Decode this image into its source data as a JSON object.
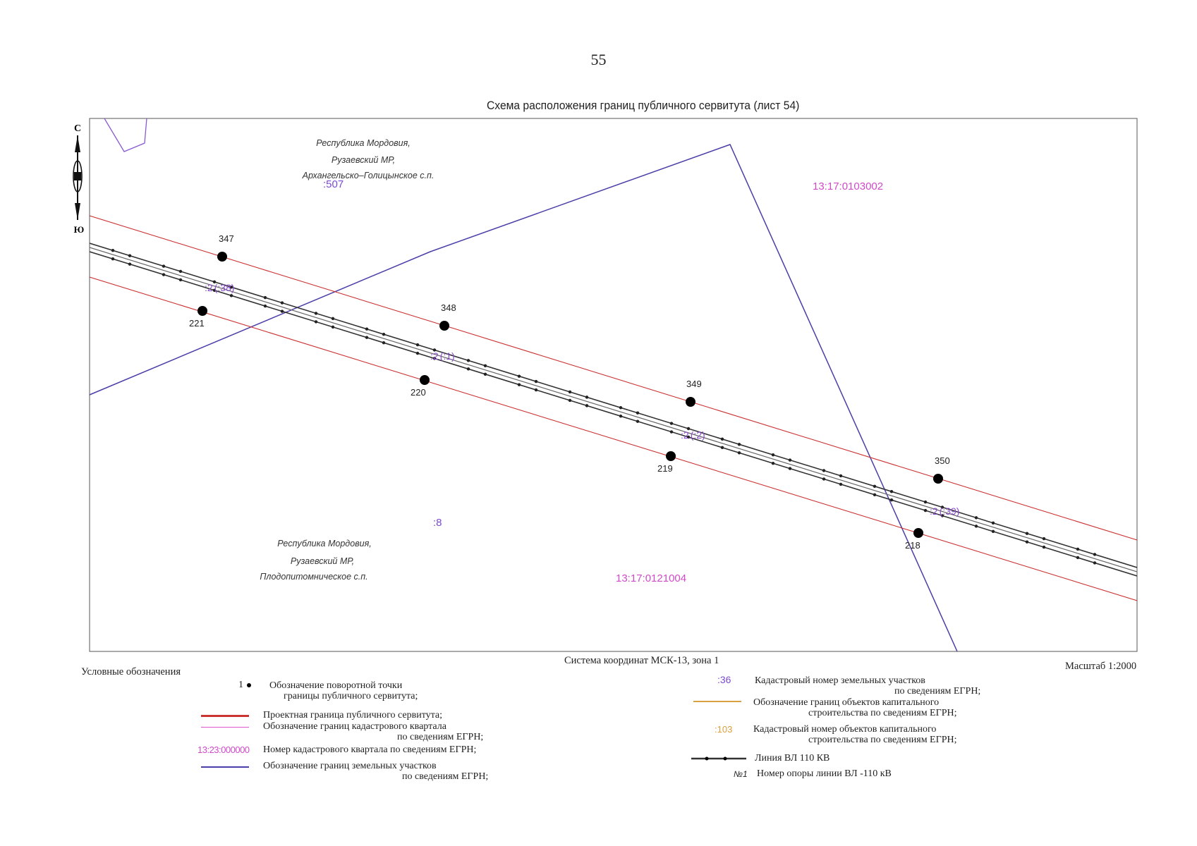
{
  "page_number": "55",
  "title": "Схема расположения границ публичного сервитута (лист 54)",
  "compass": {
    "north": "С",
    "south": "Ю"
  },
  "regions": {
    "north": [
      "Республика Мордовия,",
      "Рузаевский МР,",
      "Архангельско–Голицынское с.п."
    ],
    "south": [
      "Республика Мордовия,",
      "Рузаевский МР,",
      "Плодопитомническое с.п."
    ]
  },
  "parcel_labels": {
    "p507": ":507",
    "p8": ":8",
    "p2": ":2"
  },
  "quarter_labels": {
    "q1": "13:17:0103002",
    "q2": "13:17:0121004"
  },
  "object_labels": [
    "(:1)",
    "(:2)",
    "(:38)",
    "(:39)"
  ],
  "points": {
    "p347": "347",
    "p348": "348",
    "p349": "349",
    "p350": "350",
    "p221": "221",
    "p220": "220",
    "p219": "219",
    "p218": "218"
  },
  "coord_system": "Система координат МСК-13, зона 1",
  "scale": "Масштаб 1:2000",
  "legend": {
    "heading": "Условные обозначения",
    "point_sample": "1",
    "point_desc": [
      "Обозначение поворотной точки",
      "границы публичного сервитута;"
    ],
    "servitude_border": "Проектная граница публичного сервитута;",
    "quarter_border": [
      "Обозначение границ кадастрового квартала",
      "по сведениям ЕГРН;"
    ],
    "quarter_sample": "13:23:000000",
    "quarter_number": "Номер кадастрового квартала по сведениям ЕГРН;",
    "parcel_border": [
      "Обозначение границ земельных участков",
      "по сведениям ЕГРН;"
    ],
    "parcel_sample": ":36",
    "parcel_number": [
      "Кадастровый номер земельных участков",
      "по сведениям ЕГРН;"
    ],
    "capital_border": [
      "Обозначение границ объектов капитального",
      "строительства по сведениям ЕГРН;"
    ],
    "capital_sample": ":103",
    "capital_number": [
      "Кадастровый номер объектов капитального",
      "строительства по сведениям ЕГРН;"
    ],
    "power_line": "Линия ВЛ 110 КВ",
    "pole_sample": "№1",
    "pole_number": "Номер опоры линии ВЛ -110 кВ"
  },
  "colors": {
    "servitude": "#cc3333",
    "quarter": "#dd55cc",
    "parcel": "#4a3fa8",
    "quarter_text": "#d04ac8",
    "capital": "#d9a040",
    "line": "#333333"
  }
}
